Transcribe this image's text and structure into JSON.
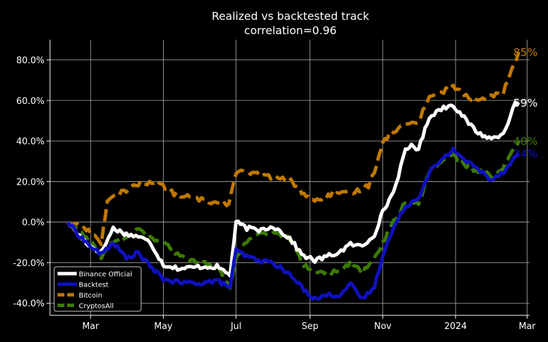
{
  "chart_data": {
    "type": "line",
    "title": "Realized vs backtested track",
    "subtitle": "correlation=0.96",
    "xlabel": "",
    "ylabel": "",
    "x_ticks": [
      {
        "x": "2023-03-01",
        "label": "Mar"
      },
      {
        "x": "2023-05-01",
        "label": "May"
      },
      {
        "x": "2023-07-01",
        "label": "Jul"
      },
      {
        "x": "2023-09-01",
        "label": "Sep"
      },
      {
        "x": "2023-11-01",
        "label": "Nov"
      },
      {
        "x": "2024-01-01",
        "label": "2024"
      },
      {
        "x": "2024-03-01",
        "label": "Mar"
      }
    ],
    "xlim": [
      "2023-01-26",
      "2024-03-03"
    ],
    "y_ticks": [
      {
        "y": -0.4,
        "label": "-40.0%"
      },
      {
        "y": -0.2,
        "label": "-20.0%"
      },
      {
        "y": 0.0,
        "label": "0.0%"
      },
      {
        "y": 0.2,
        "label": "20.0%"
      },
      {
        "y": 0.4,
        "label": "40.0%"
      },
      {
        "y": 0.6,
        "label": "60.0%"
      },
      {
        "y": 0.8,
        "label": "80.0%"
      }
    ],
    "ylim": [
      -0.46,
      0.9
    ],
    "grid": true,
    "legend_position": "bottom-left",
    "series": [
      {
        "name": "Binance Official",
        "color": "#ffffff",
        "style": "solid",
        "end_label": "59%",
        "points": [
          [
            "2023-02-10",
            0.0
          ],
          [
            "2023-02-20",
            -0.07
          ],
          [
            "2023-03-01",
            -0.12
          ],
          [
            "2023-03-10",
            -0.15
          ],
          [
            "2023-03-20",
            -0.03
          ],
          [
            "2023-03-31",
            -0.06
          ],
          [
            "2023-04-10",
            -0.07
          ],
          [
            "2023-04-20",
            -0.1
          ],
          [
            "2023-05-01",
            -0.21
          ],
          [
            "2023-05-15",
            -0.23
          ],
          [
            "2023-06-01",
            -0.22
          ],
          [
            "2023-06-15",
            -0.22
          ],
          [
            "2023-06-26",
            -0.26
          ],
          [
            "2023-07-01",
            0.0
          ],
          [
            "2023-07-10",
            -0.03
          ],
          [
            "2023-07-20",
            -0.04
          ],
          [
            "2023-08-01",
            -0.02
          ],
          [
            "2023-08-15",
            -0.08
          ],
          [
            "2023-08-25",
            -0.16
          ],
          [
            "2023-09-05",
            -0.19
          ],
          [
            "2023-09-15",
            -0.17
          ],
          [
            "2023-09-25",
            -0.15
          ],
          [
            "2023-10-05",
            -0.11
          ],
          [
            "2023-10-15",
            -0.12
          ],
          [
            "2023-10-25",
            -0.06
          ],
          [
            "2023-11-01",
            0.05
          ],
          [
            "2023-11-10",
            0.15
          ],
          [
            "2023-11-20",
            0.35
          ],
          [
            "2023-11-25",
            0.38
          ],
          [
            "2023-12-01",
            0.36
          ],
          [
            "2023-12-10",
            0.52
          ],
          [
            "2023-12-20",
            0.56
          ],
          [
            "2023-12-30",
            0.58
          ],
          [
            "2024-01-10",
            0.5
          ],
          [
            "2024-01-20",
            0.44
          ],
          [
            "2024-01-31",
            0.41
          ],
          [
            "2024-02-10",
            0.44
          ],
          [
            "2024-02-20",
            0.58
          ],
          [
            "2024-02-23",
            0.59
          ]
        ]
      },
      {
        "name": "Backtest",
        "color": "#1010c0",
        "style": "solid",
        "end_label": "34%",
        "points": [
          [
            "2023-02-10",
            0.0
          ],
          [
            "2023-02-20",
            -0.07
          ],
          [
            "2023-03-01",
            -0.12
          ],
          [
            "2023-03-10",
            -0.16
          ],
          [
            "2023-03-20",
            -0.1
          ],
          [
            "2023-03-31",
            -0.18
          ],
          [
            "2023-04-10",
            -0.15
          ],
          [
            "2023-04-20",
            -0.22
          ],
          [
            "2023-05-01",
            -0.28
          ],
          [
            "2023-05-15",
            -0.3
          ],
          [
            "2023-06-01",
            -0.3
          ],
          [
            "2023-06-15",
            -0.29
          ],
          [
            "2023-06-26",
            -0.32
          ],
          [
            "2023-07-01",
            -0.14
          ],
          [
            "2023-07-10",
            -0.17
          ],
          [
            "2023-07-20",
            -0.19
          ],
          [
            "2023-08-01",
            -0.2
          ],
          [
            "2023-08-15",
            -0.26
          ],
          [
            "2023-08-25",
            -0.32
          ],
          [
            "2023-09-05",
            -0.38
          ],
          [
            "2023-09-15",
            -0.36
          ],
          [
            "2023-09-25",
            -0.36
          ],
          [
            "2023-10-05",
            -0.31
          ],
          [
            "2023-10-15",
            -0.38
          ],
          [
            "2023-10-25",
            -0.32
          ],
          [
            "2023-11-01",
            -0.16
          ],
          [
            "2023-11-10",
            -0.03
          ],
          [
            "2023-11-20",
            0.08
          ],
          [
            "2023-12-01",
            0.12
          ],
          [
            "2023-12-10",
            0.25
          ],
          [
            "2023-12-20",
            0.3
          ],
          [
            "2023-12-30",
            0.36
          ],
          [
            "2024-01-10",
            0.3
          ],
          [
            "2024-01-20",
            0.26
          ],
          [
            "2024-01-31",
            0.21
          ],
          [
            "2024-02-10",
            0.25
          ],
          [
            "2024-02-23",
            0.34
          ]
        ]
      },
      {
        "name": "Bitcoin",
        "color": "#c07800",
        "style": "dashed",
        "end_label": "85%",
        "points": [
          [
            "2023-02-10",
            0.0
          ],
          [
            "2023-02-20",
            -0.02
          ],
          [
            "2023-03-01",
            -0.05
          ],
          [
            "2023-03-10",
            -0.1
          ],
          [
            "2023-03-15",
            0.1
          ],
          [
            "2023-03-25",
            0.14
          ],
          [
            "2023-04-10",
            0.19
          ],
          [
            "2023-04-25",
            0.2
          ],
          [
            "2023-05-10",
            0.14
          ],
          [
            "2023-05-25",
            0.12
          ],
          [
            "2023-06-10",
            0.1
          ],
          [
            "2023-06-25",
            0.09
          ],
          [
            "2023-07-01",
            0.25
          ],
          [
            "2023-07-15",
            0.24
          ],
          [
            "2023-08-01",
            0.22
          ],
          [
            "2023-08-15",
            0.21
          ],
          [
            "2023-08-25",
            0.15
          ],
          [
            "2023-09-05",
            0.1
          ],
          [
            "2023-09-20",
            0.14
          ],
          [
            "2023-10-05",
            0.14
          ],
          [
            "2023-10-20",
            0.18
          ],
          [
            "2023-10-25",
            0.25
          ],
          [
            "2023-11-01",
            0.4
          ],
          [
            "2023-11-10",
            0.45
          ],
          [
            "2023-11-20",
            0.48
          ],
          [
            "2023-12-01",
            0.5
          ],
          [
            "2023-12-10",
            0.62
          ],
          [
            "2023-12-20",
            0.64
          ],
          [
            "2023-12-30",
            0.67
          ],
          [
            "2024-01-10",
            0.62
          ],
          [
            "2024-01-20",
            0.6
          ],
          [
            "2024-01-31",
            0.62
          ],
          [
            "2024-02-10",
            0.64
          ],
          [
            "2024-02-23",
            0.84
          ]
        ]
      },
      {
        "name": "CryptosAll",
        "color": "#3d7a00",
        "style": "dashed",
        "end_label": "40%",
        "points": [
          [
            "2023-02-10",
            0.0
          ],
          [
            "2023-02-20",
            -0.05
          ],
          [
            "2023-03-01",
            -0.1
          ],
          [
            "2023-03-10",
            -0.17
          ],
          [
            "2023-03-20",
            -0.1
          ],
          [
            "2023-03-31",
            -0.08
          ],
          [
            "2023-04-10",
            -0.03
          ],
          [
            "2023-04-20",
            -0.08
          ],
          [
            "2023-05-01",
            -0.1
          ],
          [
            "2023-05-15",
            -0.17
          ],
          [
            "2023-06-01",
            -0.2
          ],
          [
            "2023-06-15",
            -0.22
          ],
          [
            "2023-06-26",
            -0.33
          ],
          [
            "2023-07-01",
            -0.17
          ],
          [
            "2023-07-10",
            -0.1
          ],
          [
            "2023-07-20",
            -0.06
          ],
          [
            "2023-08-01",
            -0.06
          ],
          [
            "2023-08-15",
            -0.08
          ],
          [
            "2023-08-25",
            -0.2
          ],
          [
            "2023-09-05",
            -0.25
          ],
          [
            "2023-09-15",
            -0.25
          ],
          [
            "2023-09-25",
            -0.24
          ],
          [
            "2023-10-05",
            -0.2
          ],
          [
            "2023-10-15",
            -0.25
          ],
          [
            "2023-10-25",
            -0.18
          ],
          [
            "2023-11-01",
            -0.1
          ],
          [
            "2023-11-10",
            0.0
          ],
          [
            "2023-11-20",
            0.1
          ],
          [
            "2023-12-01",
            0.09
          ],
          [
            "2023-12-10",
            0.25
          ],
          [
            "2023-12-20",
            0.3
          ],
          [
            "2023-12-30",
            0.33
          ],
          [
            "2024-01-10",
            0.28
          ],
          [
            "2024-01-20",
            0.25
          ],
          [
            "2024-01-31",
            0.23
          ],
          [
            "2024-02-10",
            0.27
          ],
          [
            "2024-02-23",
            0.4
          ]
        ]
      }
    ]
  }
}
